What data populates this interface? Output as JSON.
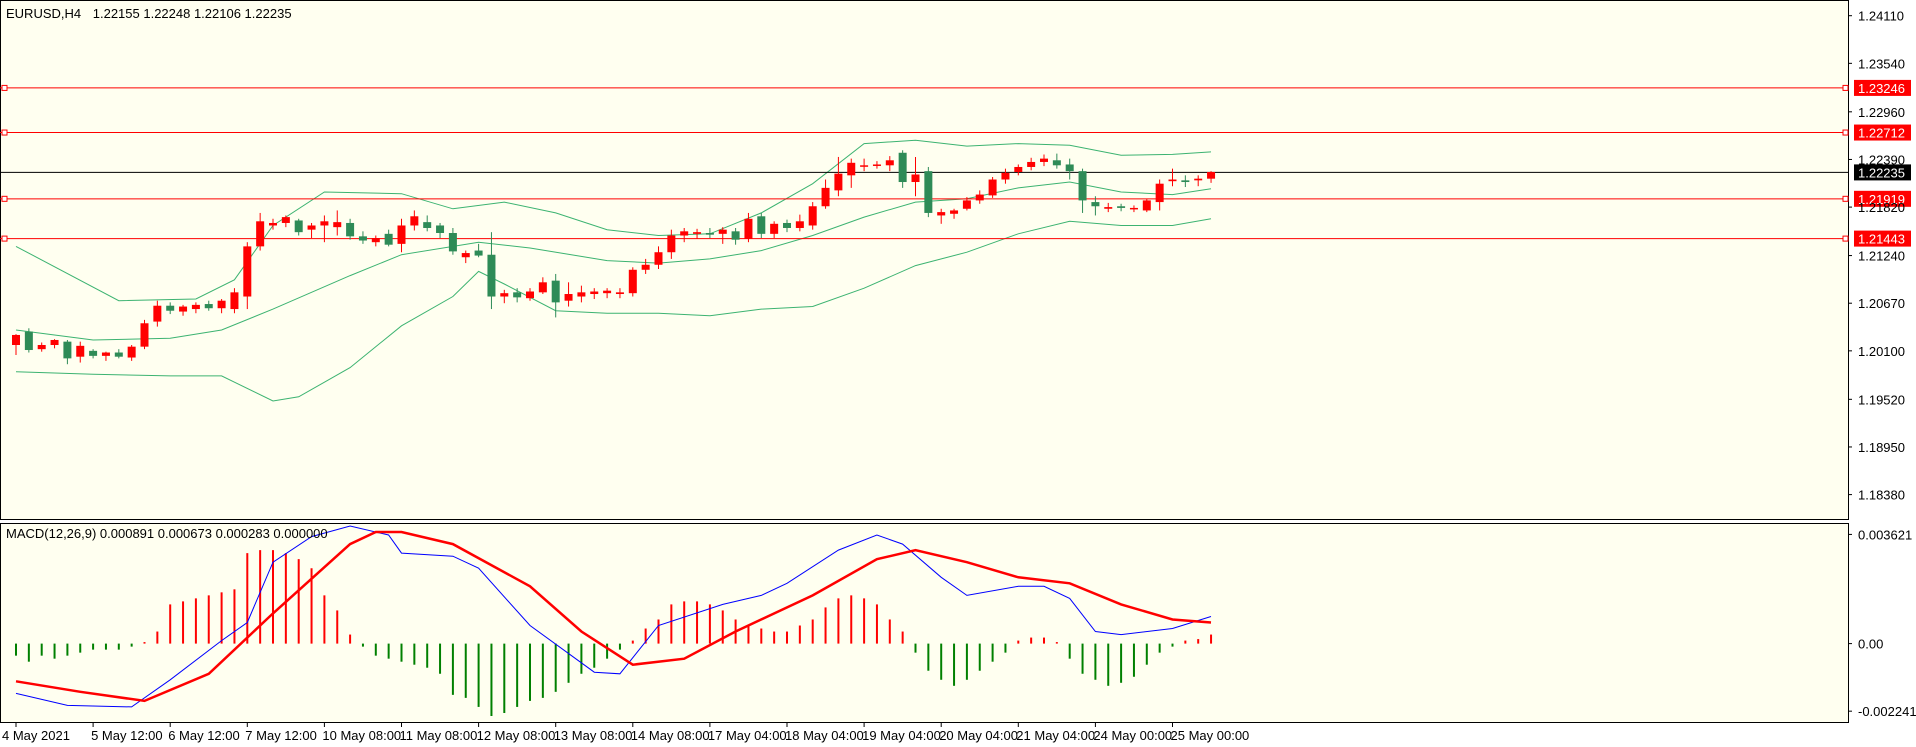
{
  "colors": {
    "background": "#FFFFF0",
    "bull": "#FF0000",
    "bear": "#2E8B57",
    "bands": "#3CB371",
    "macd_main": "#0000FF",
    "macd_signal": "#FF0000",
    "hist_pos": "#FF0000",
    "hist_neg": "#008000",
    "hline": "#FF0000",
    "current_price_line": "#000000"
  },
  "chart_data": {
    "type": "candlestick",
    "title": "EURUSD,H4",
    "ohlc_header": "1.22155 1.22248 1.22106 1.22235",
    "price_axis": {
      "ticks": [
        "1.24110",
        "1.23540",
        "1.22960",
        "1.22390",
        "1.21820",
        "1.21240",
        "1.20670",
        "1.20100",
        "1.19520",
        "1.18950",
        "1.18380"
      ],
      "range": [
        1.181,
        1.2425
      ]
    },
    "time_axis": {
      "labels": [
        "4 May 2021",
        "5 May 12:00",
        "6 May 12:00",
        "7 May 12:00",
        "10 May 08:00",
        "11 May 08:00",
        "12 May 08:00",
        "13 May 08:00",
        "14 May 08:00",
        "17 May 04:00",
        "18 May 04:00",
        "19 May 04:00",
        "20 May 04:00",
        "21 May 04:00",
        "24 May 00:00",
        "25 May 00:00"
      ],
      "label_bar_index": [
        0,
        6,
        12,
        18,
        24,
        30,
        36,
        42,
        48,
        54,
        60,
        66,
        72,
        78,
        84,
        90
      ]
    },
    "horizontal_lines": [
      {
        "price": 1.23246,
        "label": "1.23246"
      },
      {
        "price": 1.22712,
        "label": "1.22712"
      },
      {
        "price": 1.21919,
        "label": "1.21919"
      },
      {
        "price": 1.21443,
        "label": "1.21443"
      }
    ],
    "current_price": {
      "price": 1.22235,
      "label": "1.22235"
    },
    "candles": [
      [
        1.2017,
        1.203,
        1.2005,
        1.2029
      ],
      [
        1.2033,
        1.2037,
        1.2008,
        1.2011
      ],
      [
        1.2012,
        1.202,
        1.2009,
        1.2017
      ],
      [
        1.2017,
        1.2024,
        1.2013,
        1.2023
      ],
      [
        1.2021,
        1.2023,
        1.1994,
        1.2001
      ],
      [
        1.2003,
        1.2021,
        1.1996,
        1.2016
      ],
      [
        1.201,
        1.2012,
        1.2001,
        1.2004
      ],
      [
        1.2004,
        1.2009,
        1.1998,
        1.2008
      ],
      [
        1.2008,
        1.2012,
        1.2001,
        1.2003
      ],
      [
        1.2002,
        1.2017,
        1.1998,
        1.2015
      ],
      [
        1.2015,
        1.2047,
        1.2012,
        1.2043
      ],
      [
        1.2045,
        1.207,
        1.2039,
        1.2064
      ],
      [
        1.2064,
        1.2068,
        1.2054,
        1.2058
      ],
      [
        1.2057,
        1.2065,
        1.2052,
        1.2063
      ],
      [
        1.206,
        1.2068,
        1.2055,
        1.2065
      ],
      [
        1.2066,
        1.207,
        1.2058,
        1.2061
      ],
      [
        1.2061,
        1.2072,
        1.2055,
        1.207
      ],
      [
        1.206,
        1.2085,
        1.2055,
        1.208
      ],
      [
        1.2075,
        1.214,
        1.206,
        1.2135
      ],
      [
        1.2135,
        1.2175,
        1.213,
        1.2165
      ],
      [
        1.216,
        1.2168,
        1.2155,
        1.2163
      ],
      [
        1.2163,
        1.2172,
        1.2158,
        1.217
      ],
      [
        1.2166,
        1.2168,
        1.2148,
        1.2152
      ],
      [
        1.2155,
        1.2163,
        1.2145,
        1.216
      ],
      [
        1.216,
        1.2172,
        1.214,
        1.2165
      ],
      [
        1.2158,
        1.2178,
        1.2148,
        1.2164
      ],
      [
        1.2163,
        1.2168,
        1.2143,
        1.2147
      ],
      [
        1.2147,
        1.2153,
        1.2138,
        1.2142
      ],
      [
        1.214,
        1.2148,
        1.2135,
        1.2145
      ],
      [
        1.215,
        1.2155,
        1.2135,
        1.2137
      ],
      [
        1.2138,
        1.2168,
        1.2128,
        1.216
      ],
      [
        1.216,
        1.2178,
        1.2154,
        1.2171
      ],
      [
        1.2164,
        1.2172,
        1.2153,
        1.2157
      ],
      [
        1.216,
        1.2163,
        1.2145,
        1.2151
      ],
      [
        1.2151,
        1.2157,
        1.2125,
        1.2129
      ],
      [
        1.2122,
        1.213,
        1.2115,
        1.2127
      ],
      [
        1.213,
        1.2138,
        1.2122,
        1.2124
      ],
      [
        1.2125,
        1.2152,
        1.206,
        1.2075
      ],
      [
        1.2075,
        1.2083,
        1.2067,
        1.2079
      ],
      [
        1.208,
        1.2085,
        1.2068,
        1.2074
      ],
      [
        1.2073,
        1.2085,
        1.207,
        1.2081
      ],
      [
        1.208,
        1.2098,
        1.2078,
        1.2092
      ],
      [
        1.2094,
        1.2102,
        1.205,
        1.2068
      ],
      [
        1.207,
        1.2092,
        1.2063,
        1.2078
      ],
      [
        1.2075,
        1.2088,
        1.2068,
        1.208
      ],
      [
        1.2078,
        1.2085,
        1.2072,
        1.2081
      ],
      [
        1.2079,
        1.2085,
        1.2073,
        1.2082
      ],
      [
        1.2078,
        1.2085,
        1.2073,
        1.208
      ],
      [
        1.2079,
        1.211,
        1.2075,
        1.2107
      ],
      [
        1.2107,
        1.212,
        1.2102,
        1.2113
      ],
      [
        1.2113,
        1.2135,
        1.2108,
        1.2128
      ],
      [
        1.2128,
        1.2155,
        1.212,
        1.2148
      ],
      [
        1.2148,
        1.2157,
        1.214,
        1.2153
      ],
      [
        1.215,
        1.2156,
        1.2144,
        1.2152
      ],
      [
        1.2151,
        1.2157,
        1.2145,
        1.2149
      ],
      [
        1.215,
        1.2158,
        1.2138,
        1.2155
      ],
      [
        1.2153,
        1.2157,
        1.2137,
        1.2143
      ],
      [
        1.2144,
        1.2175,
        1.214,
        1.2168
      ],
      [
        1.2171,
        1.2175,
        1.2145,
        1.215
      ],
      [
        1.215,
        1.2165,
        1.2145,
        1.2162
      ],
      [
        1.2163,
        1.2167,
        1.2152,
        1.2157
      ],
      [
        1.2157,
        1.2173,
        1.2153,
        1.2165
      ],
      [
        1.216,
        1.2188,
        1.2155,
        1.2183
      ],
      [
        1.2183,
        1.2215,
        1.218,
        1.2205
      ],
      [
        1.2202,
        1.2242,
        1.2195,
        1.2222
      ],
      [
        1.222,
        1.224,
        1.2205,
        1.2235
      ],
      [
        1.2231,
        1.224,
        1.2225,
        1.2232
      ],
      [
        1.2232,
        1.2237,
        1.2228,
        1.2233
      ],
      [
        1.2232,
        1.2243,
        1.2225,
        1.2238
      ],
      [
        1.2247,
        1.225,
        1.2205,
        1.2212
      ],
      [
        1.2212,
        1.2242,
        1.2195,
        1.2221
      ],
      [
        1.2225,
        1.223,
        1.217,
        1.2175
      ],
      [
        1.2172,
        1.218,
        1.2162,
        1.2176
      ],
      [
        1.2174,
        1.218,
        1.2168,
        1.2178
      ],
      [
        1.218,
        1.2194,
        1.2178,
        1.219
      ],
      [
        1.219,
        1.2202,
        1.2186,
        1.2197
      ],
      [
        1.2196,
        1.2218,
        1.2193,
        1.2215
      ],
      [
        1.2215,
        1.2228,
        1.221,
        1.2223
      ],
      [
        1.2224,
        1.2233,
        1.222,
        1.223
      ],
      [
        1.223,
        1.2241,
        1.2226,
        1.2236
      ],
      [
        1.2236,
        1.2245,
        1.2231,
        1.224
      ],
      [
        1.2238,
        1.2246,
        1.2228,
        1.2232
      ],
      [
        1.2233,
        1.224,
        1.2215,
        1.2225
      ],
      [
        1.2225,
        1.2228,
        1.2175,
        1.219
      ],
      [
        1.2188,
        1.2195,
        1.2172,
        1.2183
      ],
      [
        1.218,
        1.2187,
        1.2176,
        1.2182
      ],
      [
        1.2183,
        1.2186,
        1.2177,
        1.2181
      ],
      [
        1.218,
        1.2184,
        1.2176,
        1.2181
      ],
      [
        1.2178,
        1.2192,
        1.2176,
        1.219
      ],
      [
        1.2188,
        1.2215,
        1.2178,
        1.221
      ],
      [
        1.2213,
        1.2228,
        1.2207,
        1.2215
      ],
      [
        1.2214,
        1.222,
        1.2206,
        1.2212
      ],
      [
        1.2214,
        1.222,
        1.2207,
        1.2216
      ],
      [
        1.2216,
        1.2225,
        1.2211,
        1.2224
      ]
    ],
    "bands": {
      "upper": [
        [
          0,
          1.2135
        ],
        [
          8,
          1.207
        ],
        [
          14,
          1.2072
        ],
        [
          17,
          1.2095
        ],
        [
          20,
          1.216
        ],
        [
          24,
          1.22
        ],
        [
          30,
          1.2198
        ],
        [
          34,
          1.218
        ],
        [
          38,
          1.2188
        ],
        [
          42,
          1.2175
        ],
        [
          46,
          1.2155
        ],
        [
          50,
          1.2148
        ],
        [
          54,
          1.215
        ],
        [
          58,
          1.2175
        ],
        [
          62,
          1.221
        ],
        [
          66,
          1.2258
        ],
        [
          70,
          1.2262
        ],
        [
          74,
          1.2255
        ],
        [
          78,
          1.2258
        ],
        [
          82,
          1.2256
        ],
        [
          86,
          1.2244
        ],
        [
          90,
          1.2245
        ],
        [
          93,
          1.2248
        ]
      ],
      "middle": [
        [
          0,
          1.2035
        ],
        [
          6,
          1.2023
        ],
        [
          12,
          1.2025
        ],
        [
          16,
          1.2035
        ],
        [
          20,
          1.206
        ],
        [
          26,
          1.21
        ],
        [
          30,
          1.2125
        ],
        [
          36,
          1.214
        ],
        [
          40,
          1.2133
        ],
        [
          46,
          1.2118
        ],
        [
          50,
          1.2115
        ],
        [
          54,
          1.212
        ],
        [
          58,
          1.213
        ],
        [
          62,
          1.2148
        ],
        [
          66,
          1.217
        ],
        [
          70,
          1.2188
        ],
        [
          74,
          1.2192
        ],
        [
          78,
          1.2205
        ],
        [
          82,
          1.2212
        ],
        [
          86,
          1.22
        ],
        [
          90,
          1.2197
        ],
        [
          93,
          1.2204
        ]
      ],
      "lower": [
        [
          0,
          1.1985
        ],
        [
          6,
          1.1982
        ],
        [
          12,
          1.198
        ],
        [
          16,
          1.198
        ],
        [
          20,
          1.195
        ],
        [
          22,
          1.1955
        ],
        [
          26,
          1.199
        ],
        [
          30,
          1.204
        ],
        [
          34,
          1.2075
        ],
        [
          36,
          1.2105
        ],
        [
          38,
          1.209
        ],
        [
          42,
          1.2058
        ],
        [
          46,
          1.2055
        ],
        [
          50,
          1.2055
        ],
        [
          54,
          1.2052
        ],
        [
          58,
          1.206
        ],
        [
          62,
          1.2063
        ],
        [
          66,
          1.2085
        ],
        [
          70,
          1.2112
        ],
        [
          74,
          1.2128
        ],
        [
          78,
          1.215
        ],
        [
          82,
          1.2165
        ],
        [
          86,
          1.216
        ],
        [
          90,
          1.216
        ],
        [
          93,
          1.2168
        ]
      ]
    }
  },
  "macd": {
    "label": "MACD(12,26,9) 0.000891 0.000673 0.000283 0.000000",
    "axis_ticks": [
      "0.003621",
      "0.00",
      "-0.002241"
    ],
    "axis_values": [
      0.003621,
      0.0,
      -0.002241
    ],
    "range": [
      -0.0026,
      0.0039
    ],
    "main": [
      [
        0,
        -0.00165
      ],
      [
        4,
        -0.00205
      ],
      [
        9,
        -0.0021
      ],
      [
        12,
        -0.0012
      ],
      [
        16,
        0.0001
      ],
      [
        18,
        0.0007
      ],
      [
        20,
        0.0027
      ],
      [
        23,
        0.00355
      ],
      [
        26,
        0.0039
      ],
      [
        29,
        0.0036
      ],
      [
        30,
        0.003
      ],
      [
        34,
        0.0029
      ],
      [
        36,
        0.0025
      ],
      [
        40,
        0.0006
      ],
      [
        45,
        -0.00095
      ],
      [
        47,
        -0.001
      ],
      [
        50,
        0.0006
      ],
      [
        55,
        0.0013
      ],
      [
        58,
        0.0016
      ],
      [
        60,
        0.002
      ],
      [
        64,
        0.0031
      ],
      [
        67,
        0.0036
      ],
      [
        69,
        0.0033
      ],
      [
        72,
        0.0022
      ],
      [
        74,
        0.0016
      ],
      [
        78,
        0.0019
      ],
      [
        80,
        0.0019
      ],
      [
        82,
        0.0015
      ],
      [
        84,
        0.0004
      ],
      [
        86,
        0.0003
      ],
      [
        90,
        0.0005
      ],
      [
        93,
        0.0009
      ]
    ],
    "signal": [
      [
        0,
        -0.00125
      ],
      [
        5,
        -0.0016
      ],
      [
        10,
        -0.0019
      ],
      [
        15,
        -0.001
      ],
      [
        20,
        0.001
      ],
      [
        26,
        0.0033
      ],
      [
        28,
        0.0037
      ],
      [
        30,
        0.0037
      ],
      [
        34,
        0.0033
      ],
      [
        40,
        0.0019
      ],
      [
        44,
        0.0004
      ],
      [
        48,
        -0.0007
      ],
      [
        52,
        -0.0005
      ],
      [
        56,
        0.0004
      ],
      [
        62,
        0.0016
      ],
      [
        67,
        0.0028
      ],
      [
        70,
        0.0031
      ],
      [
        74,
        0.0027
      ],
      [
        78,
        0.0022
      ],
      [
        82,
        0.002
      ],
      [
        86,
        0.0013
      ],
      [
        90,
        0.0008
      ],
      [
        93,
        0.0007
      ]
    ],
    "histogram": [
      -0.0004,
      -0.0006,
      -0.0004,
      -0.0005,
      -0.0004,
      -0.0003,
      -0.0002,
      -0.0002,
      -0.0002,
      -0.0001,
      5e-05,
      0.0004,
      0.0013,
      0.0014,
      0.0015,
      0.0016,
      0.0017,
      0.0018,
      0.003,
      0.0031,
      0.0031,
      0.003,
      0.0028,
      0.0025,
      0.0016,
      0.0011,
      0.0003,
      -0.0001,
      -0.0004,
      -0.0005,
      -0.0006,
      -0.0007,
      -0.0008,
      -0.001,
      -0.0017,
      -0.0018,
      -0.0021,
      -0.0024,
      -0.0023,
      -0.0021,
      -0.0019,
      -0.0018,
      -0.0016,
      -0.0013,
      -0.001,
      -0.0008,
      -0.0005,
      -0.0002,
      0.0001,
      0.0005,
      0.0008,
      0.0013,
      0.0014,
      0.0014,
      0.0013,
      0.0011,
      0.0008,
      0.0006,
      0.0005,
      0.0004,
      0.0004,
      0.0006,
      0.0008,
      0.0012,
      0.0015,
      0.0016,
      0.0015,
      0.0013,
      0.0008,
      0.0004,
      -0.0003,
      -0.0009,
      -0.0012,
      -0.0014,
      -0.0012,
      -0.0009,
      -0.0006,
      -0.0003,
      0.0001,
      0.0002,
      0.0002,
      5e-05,
      -0.0005,
      -0.001,
      -0.0012,
      -0.0014,
      -0.0013,
      -0.0011,
      -0.0007,
      -0.0003,
      -0.0001,
      0.0001,
      0.00015,
      0.0003
    ]
  }
}
